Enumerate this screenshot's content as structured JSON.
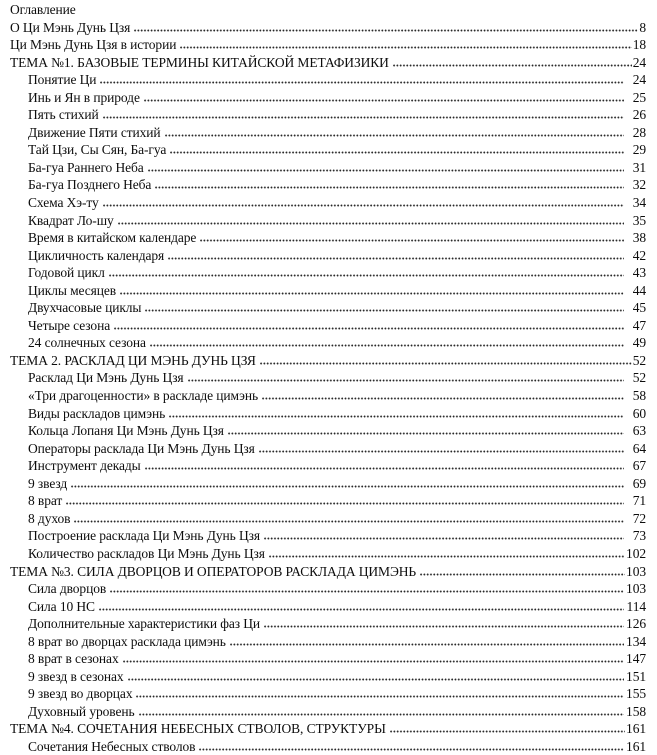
{
  "document": {
    "title": "Оглавление",
    "text_color": "#0d0d0d",
    "background_color": "#ffffff",
    "entries": [
      {
        "level": 1,
        "label": "О Ци Мэнь Дунь Цзя",
        "page": "8"
      },
      {
        "level": 1,
        "label": "Ци Мэнь Дунь Цзя в истории",
        "page": "18"
      },
      {
        "level": 1,
        "label": "ТЕМА №1. БАЗОВЫЕ ТЕРМИНЫ КИТАЙСКОЙ МЕТАФИЗИКИ",
        "page": "24"
      },
      {
        "level": 2,
        "label": "Понятие Ци",
        "page": "24"
      },
      {
        "level": 2,
        "label": "Инь и Ян в природе",
        "page": "25"
      },
      {
        "level": 2,
        "label": "Пять стихий",
        "page": "26"
      },
      {
        "level": 2,
        "label": "Движение Пяти стихий",
        "page": "28"
      },
      {
        "level": 2,
        "label": "Тай Цзи, Сы Сян, Ба-гуа",
        "page": "29"
      },
      {
        "level": 2,
        "label": "Ба-гуа Раннего Неба",
        "page": "31"
      },
      {
        "level": 2,
        "label": "Ба-гуа Позднего Неба",
        "page": "32"
      },
      {
        "level": 2,
        "label": "Схема Хэ-ту",
        "page": "34"
      },
      {
        "level": 2,
        "label": "Квадрат Ло-шу",
        "page": "35"
      },
      {
        "level": 2,
        "label": "Время в китайском календаре",
        "page": "38"
      },
      {
        "level": 2,
        "label": "Цикличность календаря",
        "page": "42"
      },
      {
        "level": 2,
        "label": "Годовой цикл",
        "page": "43"
      },
      {
        "level": 2,
        "label": "Циклы месяцев",
        "page": "44"
      },
      {
        "level": 2,
        "label": "Двухчасовые циклы",
        "page": "45"
      },
      {
        "level": 2,
        "label": "Четыре сезона",
        "page": "47"
      },
      {
        "level": 2,
        "label": "24 солнечных сезона",
        "page": "49"
      },
      {
        "level": 1,
        "label": "ТЕМА 2. РАСКЛАД ЦИ МЭНЬ ДУНЬ ЦЗЯ",
        "page": "52"
      },
      {
        "level": 2,
        "label": "Расклад Ци Мэнь Дунь Цзя",
        "page": "52"
      },
      {
        "level": 2,
        "label": "«Три драгоценности» в раскладе цимэнь",
        "page": "58"
      },
      {
        "level": 2,
        "label": "Виды раскладов цимэнь",
        "page": "60"
      },
      {
        "level": 2,
        "label": "Кольца Лопаня Ци Мэнь Дунь Цзя",
        "page": "63"
      },
      {
        "level": 2,
        "label": "Операторы расклада Ци Мэнь Дунь Цзя",
        "page": "64"
      },
      {
        "level": 2,
        "label": "Инструмент декады",
        "page": "67"
      },
      {
        "level": 2,
        "label": "9 звезд",
        "page": "69"
      },
      {
        "level": 2,
        "label": "8 врат",
        "page": "71"
      },
      {
        "level": 2,
        "label": "8 духов",
        "page": "72"
      },
      {
        "level": 2,
        "label": "Построение расклада Ци Мэнь Дунь Цзя",
        "page": "73"
      },
      {
        "level": 2,
        "label": "Количество раскладов Ци Мэнь Дунь Цзя",
        "page": "102"
      },
      {
        "level": 1,
        "label": "ТЕМА №3. СИЛА ДВОРЦОВ И ОПЕРАТОРОВ РАСКЛАДА ЦИМЭНЬ",
        "page": "103"
      },
      {
        "level": 2,
        "label": "Сила дворцов",
        "page": "103"
      },
      {
        "level": 2,
        "label": "Сила 10 НС",
        "page": "114"
      },
      {
        "level": 2,
        "label": "Дополнительные характеристики фаз Ци",
        "page": "126"
      },
      {
        "level": 2,
        "label": "8 врат во дворцах расклада цимэнь",
        "page": "134"
      },
      {
        "level": 2,
        "label": "8 врат в сезонах",
        "page": "147"
      },
      {
        "level": 2,
        "label": "9 звезд в сезонах",
        "page": "151"
      },
      {
        "level": 2,
        "label": "9 звезд во дворцах",
        "page": "155"
      },
      {
        "level": 2,
        "label": "Духовный уровень",
        "page": "158"
      },
      {
        "level": 1,
        "label": "ТЕМА №4. СОЧЕТАНИЯ НЕБЕСНЫХ СТВОЛОВ, СТРУКТУРЫ",
        "page": "161"
      },
      {
        "level": 2,
        "label": "Сочетания Небесных стволов",
        "page": "161"
      }
    ]
  }
}
